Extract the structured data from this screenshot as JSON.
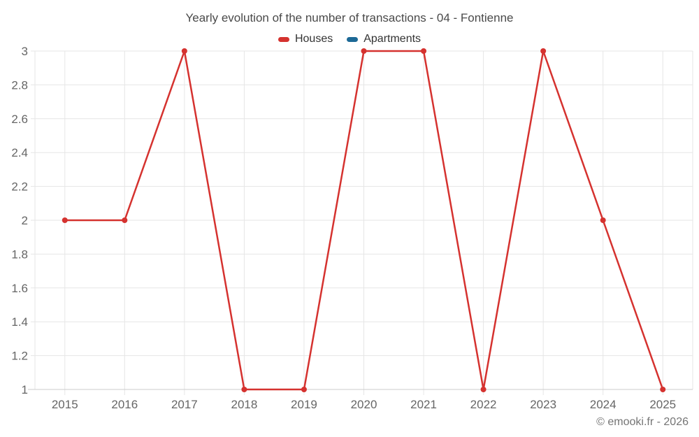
{
  "chart_data": {
    "type": "line",
    "title": "Yearly evolution of the number of transactions - 04 - Fontienne",
    "categories": [
      "2015",
      "2016",
      "2017",
      "2018",
      "2019",
      "2020",
      "2021",
      "2022",
      "2023",
      "2024",
      "2025"
    ],
    "series": [
      {
        "name": "Houses",
        "color": "#d5322f",
        "values": [
          2,
          2,
          3,
          1,
          1,
          3,
          3,
          1,
          3,
          2,
          1
        ]
      },
      {
        "name": "Apartments",
        "color": "#1d6996",
        "values": []
      }
    ],
    "ylim": [
      1,
      3
    ],
    "y_tick_step": 0.2,
    "y_tick_labels": [
      "1",
      "1.2",
      "1.4",
      "1.6",
      "1.8",
      "2",
      "2.2",
      "2.4",
      "2.6",
      "2.8",
      "3"
    ],
    "grid": true,
    "legend_position": "top",
    "marker": "circle"
  },
  "footer": {
    "credit": "© emooki.fr - 2026"
  },
  "colors": {
    "background": "#ffffff",
    "grid": "#e6e6e6",
    "axis": "#cccccc",
    "title_text": "#4a4a4a",
    "axis_text": "#666666",
    "legend_text": "#333333",
    "footer_text": "#757575"
  }
}
